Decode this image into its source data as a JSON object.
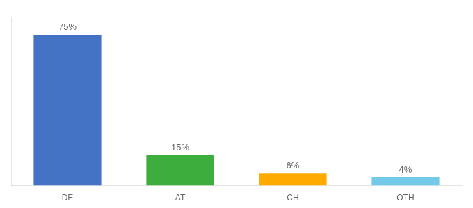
{
  "chart_data": {
    "type": "bar",
    "categories": [
      "DE",
      "AT",
      "CH",
      "OTH"
    ],
    "values": [
      75,
      15,
      6,
      4
    ],
    "value_labels": [
      "75%",
      "15%",
      "6%",
      "4%"
    ],
    "colors": [
      "#4472c4",
      "#3dae3d",
      "#ffaa00",
      "#72c9e8"
    ],
    "ylim": [
      0,
      84
    ],
    "grid": false,
    "tick_labels": "x",
    "data_labels": true
  }
}
